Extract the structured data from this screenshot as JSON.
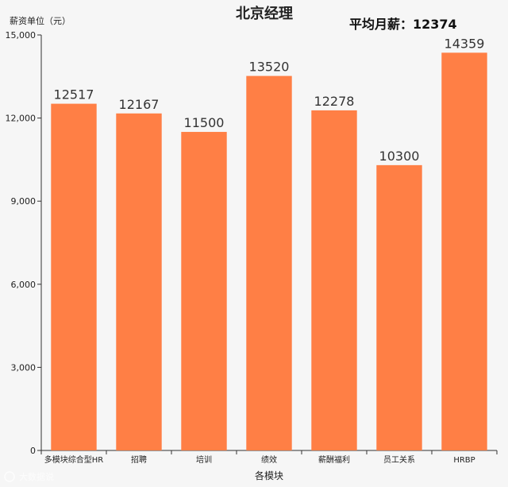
{
  "chart_data": {
    "type": "bar",
    "title": "北京经理",
    "subtitle": "平均月薪：12374",
    "ylabel": "薪资单位（元）",
    "xlabel": "各模块",
    "categories": [
      "多模块综合型HR",
      "招聘",
      "培训",
      "绩效",
      "薪酬福利",
      "员工关系",
      "HRBP"
    ],
    "values": [
      12517,
      12167,
      11500,
      13520,
      12278,
      10300,
      14359
    ],
    "value_labels": [
      "12517",
      "12167",
      "11500",
      "13520",
      "12278",
      "10300",
      "14359"
    ],
    "ylim": [
      0,
      15000
    ],
    "yticks": [
      0,
      3000,
      6000,
      9000,
      12000,
      15000
    ],
    "ytick_labels": [
      "0",
      "3,000",
      "6,000",
      "9,000",
      "12,000",
      "15,000"
    ],
    "bar_color": "#ff7f45",
    "grid": false,
    "legend": "none"
  },
  "watermark": "大数据说"
}
